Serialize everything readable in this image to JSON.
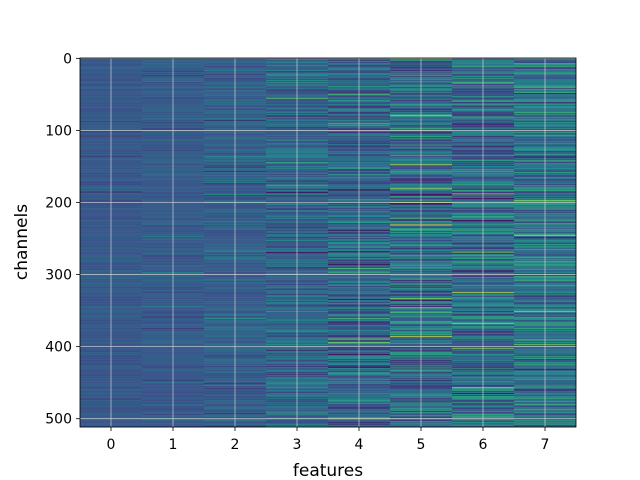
{
  "chart_data": {
    "type": "heatmap",
    "title": "",
    "xlabel": "features",
    "ylabel": "channels",
    "x_categories": [
      "0",
      "1",
      "2",
      "3",
      "4",
      "5",
      "6",
      "7"
    ],
    "y_ticks": [
      0,
      100,
      200,
      300,
      400,
      500
    ],
    "y_range": [
      0,
      511
    ],
    "y_inverted": true,
    "n_rows": 512,
    "grid": true,
    "colormap": "viridis",
    "colormap_colors": [
      "#440154",
      "#3b528b",
      "#21918c",
      "#5ec962",
      "#fde725"
    ],
    "column_intensity": [
      {
        "feature": "0",
        "mean": 0.28,
        "spread": 0.05
      },
      {
        "feature": "1",
        "mean": 0.29,
        "spread": 0.06
      },
      {
        "feature": "2",
        "mean": 0.31,
        "spread": 0.09
      },
      {
        "feature": "3",
        "mean": 0.33,
        "spread": 0.16
      },
      {
        "feature": "4",
        "mean": 0.34,
        "spread": 0.2
      },
      {
        "feature": "5",
        "mean": 0.36,
        "spread": 0.23
      },
      {
        "feature": "6",
        "mean": 0.37,
        "spread": 0.23
      },
      {
        "feature": "7",
        "mean": 0.4,
        "spread": 0.22
      }
    ]
  }
}
